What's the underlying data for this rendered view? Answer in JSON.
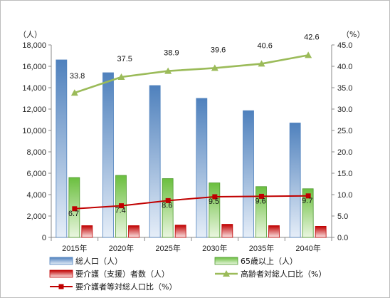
{
  "chart_data": {
    "type": "bar",
    "title": "",
    "left_axis_unit": "（人）",
    "right_axis_unit": "（%）",
    "categories": [
      "2015年",
      "2020年",
      "2025年",
      "2030年",
      "2035年",
      "2040年"
    ],
    "left_axis": {
      "min": 0,
      "max": 18000,
      "step": 2000,
      "tick_labels": [
        "0",
        "2,000",
        "4,000",
        "6,000",
        "8,000",
        "10,000",
        "12,000",
        "14,000",
        "16,000",
        "18,000"
      ]
    },
    "right_axis": {
      "min": 0,
      "max": 45,
      "step": 5,
      "tick_labels": [
        "0.0",
        "5.0",
        "10.0",
        "15.0",
        "20.0",
        "25.0",
        "30.0",
        "35.0",
        "40.0",
        "45.0"
      ]
    },
    "bar_series": [
      {
        "name": "総人口（人）",
        "values": [
          16600,
          15400,
          14200,
          13000,
          11850,
          10700
        ],
        "color": "#4f81bd"
      },
      {
        "name": "65歳以上（人）",
        "values": [
          5600,
          5800,
          5500,
          5100,
          4750,
          4550
        ],
        "color": "#4e9a2f"
      },
      {
        "name": "要介護（支援）者数（人）",
        "values": [
          1100,
          1100,
          1150,
          1230,
          1100,
          1040
        ],
        "color": "#c00000"
      }
    ],
    "line_series": [
      {
        "name": "高齢者対総人口比（%）",
        "values": [
          33.8,
          37.5,
          38.9,
          39.6,
          40.6,
          42.6
        ],
        "labels": [
          "33.8",
          "37.5",
          "38.9",
          "39.6",
          "40.6",
          "42.6"
        ],
        "color": "#9bbb59",
        "marker": "triangle"
      },
      {
        "name": "要介護者等対総人口比（%）",
        "values": [
          6.7,
          7.4,
          8.6,
          9.5,
          9.6,
          9.7
        ],
        "labels": [
          "6.7",
          "7.4",
          "8.6",
          "9.5",
          "9.6",
          "9.7"
        ],
        "color": "#c00000",
        "marker": "square"
      }
    ],
    "grid": false,
    "legend_position": "bottom"
  }
}
